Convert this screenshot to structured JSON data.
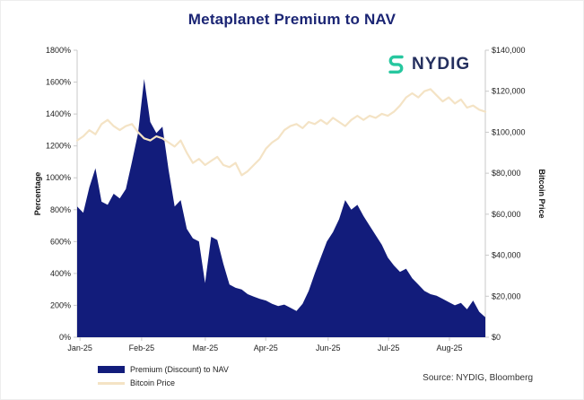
{
  "title": "Metaplanet Premium to NAV",
  "logo": {
    "text": "NYDIG",
    "icon": "nydig-s-icon",
    "icon_color": "#27C79F",
    "text_color": "#242F5E"
  },
  "source": "Source: NYDIG, Bloomberg",
  "legend": {
    "premium": {
      "label": "Premium (Discount) to NAV",
      "color": "#121C7B",
      "type": "area"
    },
    "bitcoin": {
      "label": "Bitcoin Price",
      "color": "#F4E3C5",
      "type": "line"
    }
  },
  "chart_data": {
    "type": "area",
    "title": "Metaplanet Premium to NAV",
    "x_tick_labels": [
      "Jan-25",
      "Feb-25",
      "Mar-25",
      "Apr-25",
      "Jun-25",
      "Jul-25",
      "Aug-25"
    ],
    "x_tick_positions": [
      0.007,
      0.158,
      0.314,
      0.462,
      0.615,
      0.763,
      0.912
    ],
    "left_axis": {
      "label": "Percentage",
      "min": 0,
      "max": 1800,
      "tick_step": 200,
      "format": "percent"
    },
    "right_axis": {
      "label": "Bitcoin Price",
      "min": 0,
      "max": 140000,
      "tick_step": 20000,
      "format": "usd"
    },
    "grid": false,
    "legend_position": "bottom-left",
    "series": [
      {
        "name": "Premium (Discount) to NAV",
        "type": "area",
        "axis": "left",
        "color": "#121C7B",
        "values": [
          820,
          780,
          940,
          1060,
          850,
          830,
          900,
          870,
          930,
          1100,
          1280,
          1620,
          1350,
          1280,
          1320,
          1050,
          820,
          860,
          680,
          620,
          600,
          340,
          630,
          610,
          460,
          330,
          310,
          300,
          270,
          255,
          240,
          230,
          210,
          195,
          205,
          185,
          165,
          210,
          290,
          400,
          500,
          600,
          660,
          740,
          860,
          800,
          830,
          760,
          700,
          640,
          580,
          500,
          450,
          410,
          430,
          370,
          330,
          290,
          270,
          260,
          240,
          220,
          200,
          215,
          175,
          230,
          160,
          125
        ]
      },
      {
        "name": "Bitcoin Price",
        "type": "line",
        "axis": "right",
        "color": "#F4E3C5",
        "values": [
          96000,
          98000,
          101000,
          99000,
          104000,
          106000,
          103000,
          101000,
          103000,
          104000,
          100000,
          97000,
          96000,
          98000,
          97000,
          95000,
          93000,
          96000,
          90000,
          85000,
          87000,
          84000,
          86000,
          88000,
          84000,
          83000,
          85000,
          79000,
          81000,
          84000,
          87000,
          92000,
          95000,
          97000,
          101000,
          103000,
          104000,
          102000,
          105000,
          104000,
          106000,
          104000,
          107000,
          105000,
          103000,
          106000,
          108000,
          106000,
          108000,
          107000,
          109000,
          108000,
          110000,
          113000,
          117000,
          119000,
          117000,
          120000,
          121000,
          118000,
          115000,
          117000,
          114000,
          116000,
          112000,
          113000,
          111000,
          110000
        ]
      }
    ]
  }
}
